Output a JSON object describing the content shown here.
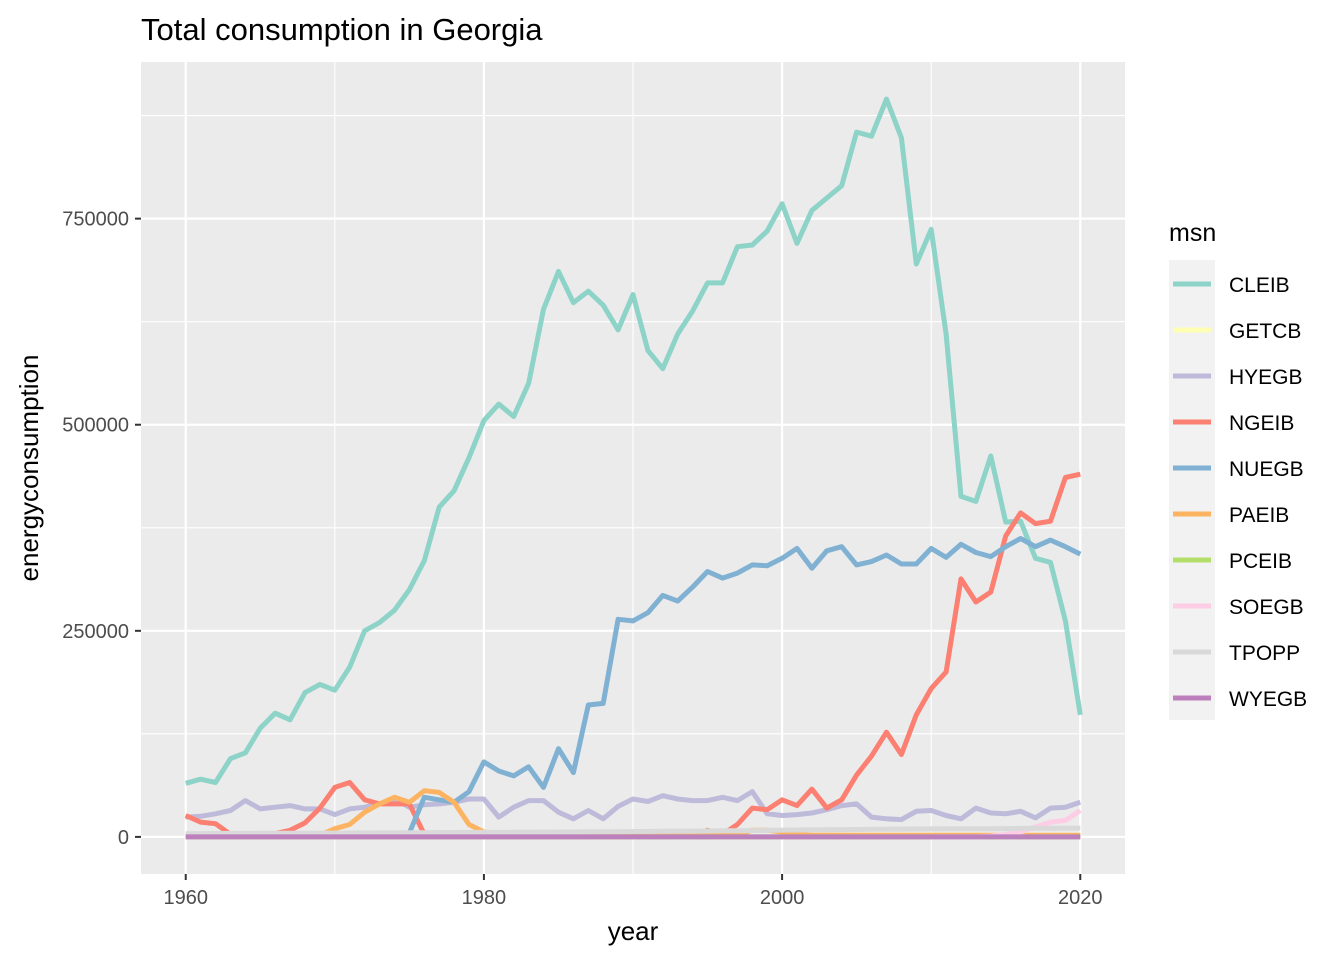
{
  "chart_data": {
    "type": "line",
    "title": "Total consumption in Georgia",
    "xlabel": "year",
    "ylabel": "energyconsumption",
    "xlim": [
      1957,
      2023
    ],
    "ylim": [
      -45000,
      940000
    ],
    "x_ticks": [
      1960,
      1980,
      2000,
      2020
    ],
    "x_tick_labels": [
      "1960",
      "1980",
      "2000",
      "2020"
    ],
    "y_ticks": [
      0,
      250000,
      500000,
      750000
    ],
    "y_tick_labels": [
      "0",
      "250000",
      "500000",
      "750000"
    ],
    "grid": true,
    "legend": {
      "title": "msn",
      "position": "right"
    },
    "series": [
      {
        "name": "CLEIB",
        "color": "#8DD3C7",
        "x_start": 1960,
        "x_end": 2020,
        "values": [
          65000,
          70000,
          66000,
          95000,
          102000,
          132000,
          150000,
          142000,
          175000,
          185000,
          178000,
          206000,
          250000,
          260000,
          275000,
          300000,
          335000,
          400000,
          420000,
          460000,
          505000,
          525000,
          510000,
          550000,
          640000,
          686000,
          648000,
          662000,
          645000,
          615000,
          658000,
          590000,
          568000,
          610000,
          638000,
          672000,
          672000,
          716000,
          718000,
          735000,
          768000,
          720000,
          760000,
          775000,
          790000,
          855000,
          850000,
          895000,
          848000,
          695000,
          737000,
          610000,
          413000,
          407000,
          462000,
          382000,
          383000,
          338000,
          333000,
          262000,
          148000
        ]
      },
      {
        "name": "GETCB",
        "color": "#FFFFB3",
        "x_start": 2000,
        "x_end": 2020,
        "values": [
          2000,
          2000,
          2000,
          2000,
          2000,
          2000,
          2000,
          2000,
          2000,
          2000,
          2000,
          2000,
          2000,
          2000,
          2000,
          2000,
          2000,
          2000,
          2000,
          2000,
          2000
        ]
      },
      {
        "name": "HYEGB",
        "color": "#BEBADA",
        "x_start": 1960,
        "x_end": 2020,
        "values": [
          24000,
          25000,
          28000,
          32000,
          44000,
          34000,
          36000,
          38000,
          34000,
          34000,
          27000,
          34000,
          36000,
          40000,
          46000,
          36000,
          39000,
          40000,
          42000,
          46000,
          46000,
          24000,
          36000,
          44000,
          44000,
          30000,
          22000,
          32000,
          22000,
          37000,
          46000,
          43000,
          50000,
          46000,
          44000,
          44000,
          48000,
          44000,
          55000,
          28000,
          26000,
          27000,
          29000,
          33000,
          38000,
          40000,
          24000,
          22000,
          21000,
          31000,
          32000,
          26000,
          22000,
          35000,
          29000,
          28000,
          31000,
          23000,
          35000,
          36000,
          42000
        ]
      },
      {
        "name": "NGEIB",
        "color": "#FB8072",
        "x_start": 1960,
        "x_end": 2020,
        "values": [
          26000,
          18000,
          16000,
          3000,
          3000,
          3000,
          4000,
          8000,
          17000,
          35000,
          60000,
          66000,
          45000,
          40000,
          40000,
          40000,
          3000,
          5000,
          2000,
          2000,
          2000,
          2000,
          2000,
          2000,
          2000,
          2000,
          2000,
          2000,
          2000,
          2000,
          2000,
          2000,
          2000,
          2000,
          2000,
          8000,
          3000,
          15000,
          35000,
          33000,
          45000,
          38000,
          58000,
          35000,
          45000,
          75000,
          98000,
          127000,
          100000,
          148000,
          180000,
          200000,
          313000,
          285000,
          297000,
          365000,
          393000,
          380000,
          383000,
          436000,
          440000
        ]
      },
      {
        "name": "NUEGB",
        "color": "#80B1D3",
        "x_start": 1975,
        "x_end": 2020,
        "values": [
          5000,
          48000,
          45000,
          42000,
          55000,
          91000,
          80000,
          74000,
          85000,
          60000,
          107000,
          78000,
          160000,
          162000,
          264000,
          262000,
          272000,
          293000,
          286000,
          303000,
          322000,
          314000,
          320000,
          330000,
          329000,
          338000,
          350000,
          326000,
          347000,
          352000,
          330000,
          334000,
          342000,
          331000,
          331000,
          350000,
          339000,
          355000,
          345000,
          340000,
          352000,
          362000,
          352000,
          360000,
          352000,
          343000
        ]
      },
      {
        "name": "PAEIB",
        "color": "#FDB462",
        "x_start": 1960,
        "x_end": 2020,
        "values": [
          3000,
          2000,
          2000,
          2000,
          2000,
          2000,
          2000,
          2000,
          2000,
          2000,
          10000,
          15000,
          30000,
          40000,
          48000,
          42000,
          56000,
          54000,
          42000,
          15000,
          6000,
          3000,
          2000,
          2000,
          2000,
          2000,
          2000,
          2000,
          2000,
          2000,
          2000,
          2000,
          2000,
          2000,
          2000,
          2000,
          2000,
          2000,
          8000,
          8000,
          6000,
          3000,
          2000,
          2000,
          2000,
          2000,
          2000,
          2000,
          2000,
          2000,
          2000,
          2000,
          2000,
          2000,
          2000,
          2000,
          2000,
          2000,
          2000,
          2000,
          2000
        ]
      },
      {
        "name": "PCEIB",
        "color": "#B3DE69",
        "x_start": 1960,
        "x_end": 2020,
        "values": [
          0,
          0,
          0,
          0,
          0,
          0,
          0,
          0,
          0,
          0,
          0,
          0,
          0,
          0,
          0,
          0,
          0,
          0,
          0,
          0,
          0,
          0,
          0,
          0,
          0,
          0,
          0,
          0,
          0,
          0,
          0,
          0,
          0,
          0,
          0,
          0,
          0,
          0,
          0,
          0,
          0,
          0,
          0,
          0,
          0,
          0,
          0,
          0,
          0,
          0,
          0,
          0,
          0,
          0,
          0,
          0,
          0,
          0,
          0,
          0,
          0
        ]
      },
      {
        "name": "SOEGB",
        "color": "#FCCDE5",
        "x_start": 2010,
        "x_end": 2020,
        "values": [
          0,
          0,
          0,
          0,
          1000,
          3000,
          6000,
          12000,
          18000,
          20000,
          32000
        ]
      },
      {
        "name": "TPOPP",
        "color": "#D9D9D9",
        "x_start": 1960,
        "x_end": 2020,
        "values": [
          3900,
          4000,
          4100,
          4200,
          4300,
          4400,
          4500,
          4500,
          4500,
          4500,
          4600,
          4700,
          4800,
          4900,
          5000,
          5000,
          5100,
          5200,
          5300,
          5400,
          5500,
          5500,
          5600,
          5700,
          5800,
          5900,
          6000,
          6100,
          6200,
          6300,
          6500,
          6600,
          6800,
          6900,
          7000,
          7200,
          7400,
          7500,
          7700,
          7900,
          8200,
          8400,
          8600,
          8700,
          8800,
          9000,
          9200,
          9300,
          9500,
          9600,
          9700,
          9800,
          9900,
          9900,
          10000,
          10100,
          10300,
          10400,
          10500,
          10600,
          10700
        ]
      },
      {
        "name": "WYEGB",
        "color": "#BC80BD",
        "x_start": 1960,
        "x_end": 2020,
        "values": [
          0,
          0,
          0,
          0,
          0,
          0,
          0,
          0,
          0,
          0,
          0,
          0,
          0,
          0,
          0,
          0,
          0,
          0,
          0,
          0,
          0,
          0,
          0,
          0,
          0,
          0,
          0,
          0,
          0,
          0,
          0,
          0,
          0,
          0,
          0,
          0,
          0,
          0,
          0,
          0,
          0,
          0,
          0,
          0,
          0,
          0,
          0,
          0,
          0,
          0,
          0,
          0,
          0,
          0,
          0,
          0,
          0,
          0,
          0,
          0,
          0
        ]
      }
    ]
  }
}
